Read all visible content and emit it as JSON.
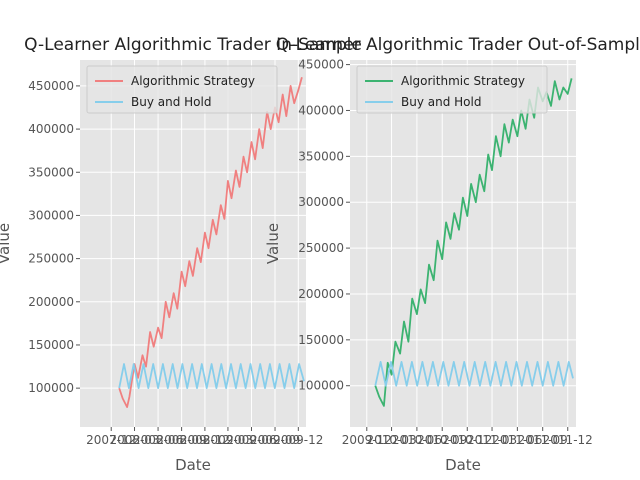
{
  "chart_data": [
    {
      "type": "line",
      "title": "Q-Learner Algorithmic Trader In-Sample",
      "xlabel": "Date",
      "ylabel": "Value",
      "xlim": [
        "2007-08-01",
        "2009-12-31"
      ],
      "ylim": [
        55000,
        480000
      ],
      "xticks": [
        "2007-12",
        "2008-03",
        "2008-06",
        "2008-09",
        "2008-12",
        "2009-03",
        "2009-06",
        "2009-09",
        "2009-12"
      ],
      "yticks": [
        100000,
        150000,
        200000,
        250000,
        300000,
        350000,
        400000,
        450000
      ],
      "grid": true,
      "legend": "upper-left",
      "series": [
        {
          "name": "Algorithmic Strategy",
          "color": "#f08080",
          "x": [
            "2008-01-01",
            "2008-01-15",
            "2008-02-01",
            "2008-02-10",
            "2008-03-01",
            "2008-03-15",
            "2008-04-01",
            "2008-04-15",
            "2008-05-01",
            "2008-05-15",
            "2008-06-01",
            "2008-06-15",
            "2008-07-01",
            "2008-07-15",
            "2008-08-01",
            "2008-08-15",
            "2008-09-01",
            "2008-09-15",
            "2008-10-01",
            "2008-10-15",
            "2008-11-01",
            "2008-11-15",
            "2008-12-01",
            "2008-12-15",
            "2009-01-01",
            "2009-01-15",
            "2009-02-01",
            "2009-02-15",
            "2009-03-01",
            "2009-03-15",
            "2009-04-01",
            "2009-04-15",
            "2009-05-01",
            "2009-05-15",
            "2009-06-01",
            "2009-06-15",
            "2009-07-01",
            "2009-07-15",
            "2009-08-01",
            "2009-08-15",
            "2009-09-01",
            "2009-09-15",
            "2009-10-01",
            "2009-10-15",
            "2009-11-01",
            "2009-11-15",
            "2009-12-01",
            "2009-12-15"
          ],
          "values": [
            100000,
            88000,
            78000,
            90000,
            128000,
            112000,
            138000,
            125000,
            165000,
            148000,
            170000,
            158000,
            200000,
            182000,
            210000,
            192000,
            235000,
            218000,
            247000,
            230000,
            262000,
            246000,
            280000,
            262000,
            295000,
            278000,
            312000,
            296000,
            340000,
            320000,
            352000,
            333000,
            368000,
            350000,
            385000,
            365000,
            400000,
            378000,
            420000,
            400000,
            425000,
            408000,
            440000,
            415000,
            450000,
            430000,
            445000,
            460000
          ]
        },
        {
          "name": "Buy and Hold",
          "color": "#87ceeb",
          "x": [
            "2008-01-01",
            "2008-01-20",
            "2008-02-08",
            "2008-02-27",
            "2008-03-17",
            "2008-04-05",
            "2008-04-24",
            "2008-05-13",
            "2008-06-01",
            "2008-06-20",
            "2008-07-09",
            "2008-07-28",
            "2008-08-16",
            "2008-09-04",
            "2008-09-23",
            "2008-10-12",
            "2008-10-31",
            "2008-11-19",
            "2008-12-08",
            "2008-12-27",
            "2009-01-15",
            "2009-02-03",
            "2009-02-22",
            "2009-03-13",
            "2009-04-01",
            "2009-04-20",
            "2009-05-09",
            "2009-05-28",
            "2009-06-16",
            "2009-07-05",
            "2009-07-24",
            "2009-08-12",
            "2009-08-31",
            "2009-09-19",
            "2009-10-08",
            "2009-10-27",
            "2009-11-15",
            "2009-12-04",
            "2009-12-23"
          ],
          "values": [
            100000,
            128000,
            100000,
            128000,
            100000,
            128000,
            100000,
            128000,
            100000,
            128000,
            100000,
            128000,
            100000,
            128000,
            100000,
            128000,
            100000,
            128000,
            100000,
            128000,
            100000,
            128000,
            100000,
            128000,
            100000,
            128000,
            100000,
            128000,
            100000,
            128000,
            100000,
            128000,
            100000,
            128000,
            100000,
            128000,
            100000,
            128000,
            108000
          ]
        }
      ]
    },
    {
      "type": "line",
      "title": "Q-Learner Algorithmic Trader Out-of-Sample",
      "xlabel": "Date",
      "ylabel": "Value",
      "xlim": [
        "2009-10-01",
        "2011-12-31"
      ],
      "ylim": [
        55000,
        455000
      ],
      "xticks": [
        "2009-12",
        "2010-03",
        "2010-06",
        "2010-09",
        "2010-12",
        "2011-03",
        "2011-06",
        "2011-09",
        "2011-12"
      ],
      "yticks": [
        100000,
        150000,
        200000,
        250000,
        300000,
        350000,
        400000,
        450000
      ],
      "grid": true,
      "legend": "upper-left",
      "series": [
        {
          "name": "Algorithmic Strategy",
          "color": "#3cb371",
          "x": [
            "2010-01-01",
            "2010-01-15",
            "2010-02-01",
            "2010-02-15",
            "2010-03-01",
            "2010-03-15",
            "2010-04-01",
            "2010-04-15",
            "2010-05-01",
            "2010-05-15",
            "2010-06-01",
            "2010-06-15",
            "2010-07-01",
            "2010-07-15",
            "2010-08-01",
            "2010-08-15",
            "2010-09-01",
            "2010-09-15",
            "2010-10-01",
            "2010-10-15",
            "2010-11-01",
            "2010-11-15",
            "2010-12-01",
            "2010-12-15",
            "2011-01-01",
            "2011-01-15",
            "2011-02-01",
            "2011-02-15",
            "2011-03-01",
            "2011-03-15",
            "2011-04-01",
            "2011-04-15",
            "2011-05-01",
            "2011-05-15",
            "2011-06-01",
            "2011-06-15",
            "2011-07-01",
            "2011-07-15",
            "2011-08-01",
            "2011-08-15",
            "2011-09-01",
            "2011-09-15",
            "2011-10-01",
            "2011-10-15",
            "2011-11-01",
            "2011-11-15",
            "2011-12-01",
            "2011-12-15"
          ],
          "values": [
            100000,
            88000,
            78000,
            125000,
            112000,
            148000,
            135000,
            170000,
            148000,
            195000,
            178000,
            205000,
            190000,
            232000,
            215000,
            258000,
            238000,
            278000,
            260000,
            288000,
            270000,
            305000,
            285000,
            320000,
            300000,
            330000,
            312000,
            352000,
            335000,
            372000,
            350000,
            385000,
            365000,
            390000,
            372000,
            400000,
            380000,
            412000,
            392000,
            425000,
            410000,
            420000,
            405000,
            432000,
            412000,
            425000,
            418000,
            435000
          ]
        },
        {
          "name": "Buy and Hold",
          "color": "#87ceeb",
          "x": [
            "2010-01-01",
            "2010-01-20",
            "2010-02-08",
            "2010-02-27",
            "2010-03-18",
            "2010-04-06",
            "2010-04-25",
            "2010-05-14",
            "2010-06-02",
            "2010-06-21",
            "2010-07-10",
            "2010-07-29",
            "2010-08-17",
            "2010-09-05",
            "2010-09-24",
            "2010-10-13",
            "2010-11-01",
            "2010-11-20",
            "2010-12-09",
            "2010-12-28",
            "2011-01-16",
            "2011-02-04",
            "2011-02-23",
            "2011-03-14",
            "2011-04-02",
            "2011-04-21",
            "2011-05-10",
            "2011-05-29",
            "2011-06-17",
            "2011-07-06",
            "2011-07-25",
            "2011-08-13",
            "2011-09-01",
            "2011-09-20",
            "2011-10-09",
            "2011-10-28",
            "2011-11-16",
            "2011-12-05",
            "2011-12-20"
          ],
          "values": [
            100000,
            126000,
            100000,
            126000,
            100000,
            126000,
            100000,
            126000,
            100000,
            126000,
            100000,
            126000,
            100000,
            126000,
            100000,
            126000,
            100000,
            126000,
            100000,
            126000,
            100000,
            126000,
            100000,
            126000,
            100000,
            126000,
            100000,
            126000,
            100000,
            126000,
            100000,
            126000,
            100000,
            126000,
            100000,
            126000,
            100000,
            126000,
            108000
          ]
        }
      ]
    }
  ]
}
